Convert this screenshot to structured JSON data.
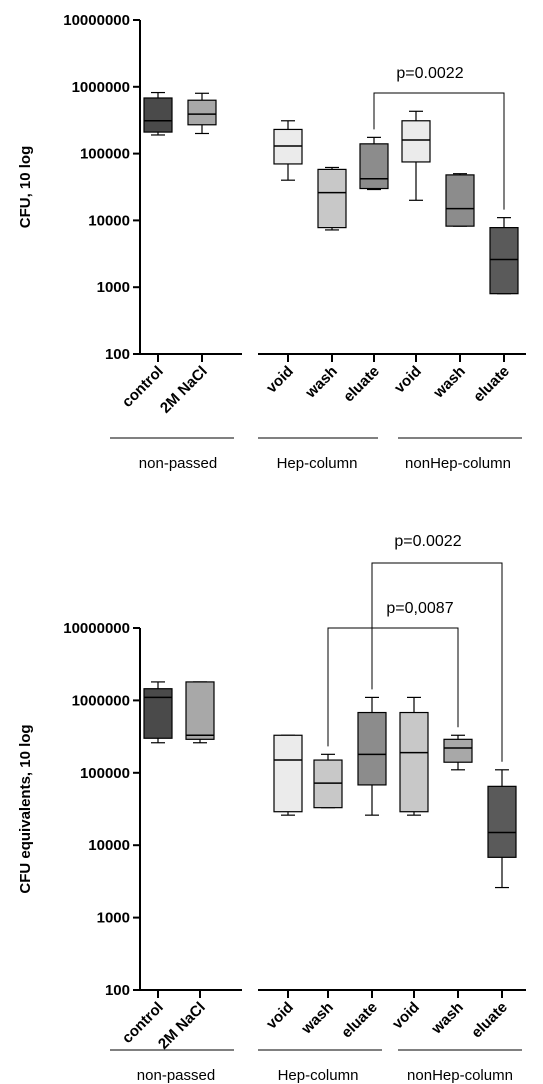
{
  "chart_data": [
    {
      "type": "box",
      "ylabel": "CFU, 10 log",
      "yscale": "log",
      "ylim": [
        100,
        10000000
      ],
      "yticks": [
        "100",
        "1000",
        "10000",
        "100000",
        "1000000",
        "10000000"
      ],
      "categories": [
        "control",
        "2M NaCl",
        "void",
        "wash",
        "eluate",
        "void",
        "wash",
        "eluate"
      ],
      "groups": [
        {
          "label": "non-passed",
          "members": [
            0,
            1
          ]
        },
        {
          "label": "Hep-column",
          "members": [
            2,
            3,
            4
          ]
        },
        {
          "label": "nonHep-column",
          "members": [
            5,
            6,
            7
          ]
        }
      ],
      "boxes": [
        {
          "min": 190000,
          "q1": 210000,
          "median": 310000,
          "q3": 680000,
          "max": 820000,
          "color": "#4a4a4a"
        },
        {
          "min": 200000,
          "q1": 270000,
          "median": 390000,
          "q3": 630000,
          "max": 800000,
          "color": "#a8a8a8"
        },
        {
          "min": 40000,
          "q1": 70000,
          "median": 130000,
          "q3": 230000,
          "max": 310000,
          "color": "#ebebeb"
        },
        {
          "min": 7200,
          "q1": 7800,
          "median": 26000,
          "q3": 58000,
          "max": 62000,
          "color": "#c8c8c8"
        },
        {
          "min": 29000,
          "q1": 30000,
          "median": 42000,
          "q3": 140000,
          "max": 175000,
          "color": "#8c8c8c"
        },
        {
          "min": 20000,
          "q1": 75000,
          "median": 160000,
          "q3": 310000,
          "max": 430000,
          "color": "#ebebeb"
        },
        {
          "min": 8200,
          "q1": 8200,
          "median": 15000,
          "q3": 48000,
          "max": 50000,
          "color": "#8c8c8c"
        },
        {
          "min": 800,
          "q1": 800,
          "median": 2600,
          "q3": 7800,
          "max": 11000,
          "color": "#5a5a5a"
        }
      ],
      "annotations": [
        {
          "text": "p=0.0022",
          "from": 4,
          "to": 7
        }
      ]
    },
    {
      "type": "box",
      "ylabel": "CFU equivalents, 10 log",
      "yscale": "log",
      "ylim": [
        100,
        10000000
      ],
      "yticks": [
        "100",
        "1000",
        "10000",
        "100000",
        "1000000",
        "10000000"
      ],
      "categories": [
        "control",
        "2M NaCl",
        "void",
        "wash",
        "eluate",
        "void",
        "wash",
        "eluate"
      ],
      "groups": [
        {
          "label": "non-passed",
          "members": [
            0,
            1
          ]
        },
        {
          "label": "Hep-column",
          "members": [
            2,
            3,
            4
          ]
        },
        {
          "label": "nonHep-column",
          "members": [
            5,
            6,
            7
          ]
        }
      ],
      "boxes": [
        {
          "min": 260000,
          "q1": 300000,
          "median": 1100000,
          "q3": 1450000,
          "max": 1800000,
          "color": "#4a4a4a"
        },
        {
          "min": 260000,
          "q1": 290000,
          "median": 330000,
          "q3": 1800000,
          "max": 1800000,
          "color": "#a8a8a8"
        },
        {
          "min": 26000,
          "q1": 29000,
          "median": 150000,
          "q3": 330000,
          "max": 330000,
          "color": "#ebebeb"
        },
        {
          "min": 33000,
          "q1": 33000,
          "median": 72000,
          "q3": 150000,
          "max": 180000,
          "color": "#c8c8c8"
        },
        {
          "min": 26000,
          "q1": 68000,
          "median": 180000,
          "q3": 680000,
          "max": 1100000,
          "color": "#8c8c8c"
        },
        {
          "min": 26000,
          "q1": 29000,
          "median": 190000,
          "q3": 680000,
          "max": 1100000,
          "color": "#c8c8c8"
        },
        {
          "min": 110000,
          "q1": 140000,
          "median": 220000,
          "q3": 290000,
          "max": 330000,
          "color": "#a8a8a8"
        },
        {
          "min": 2600,
          "q1": 6800,
          "median": 15000,
          "q3": 65000,
          "max": 110000,
          "color": "#5a5a5a"
        }
      ],
      "annotations": [
        {
          "text": "p=0.0022",
          "from": 4,
          "to": 7
        },
        {
          "text": "p=0,0087",
          "from": 3,
          "to": 6
        }
      ]
    }
  ]
}
